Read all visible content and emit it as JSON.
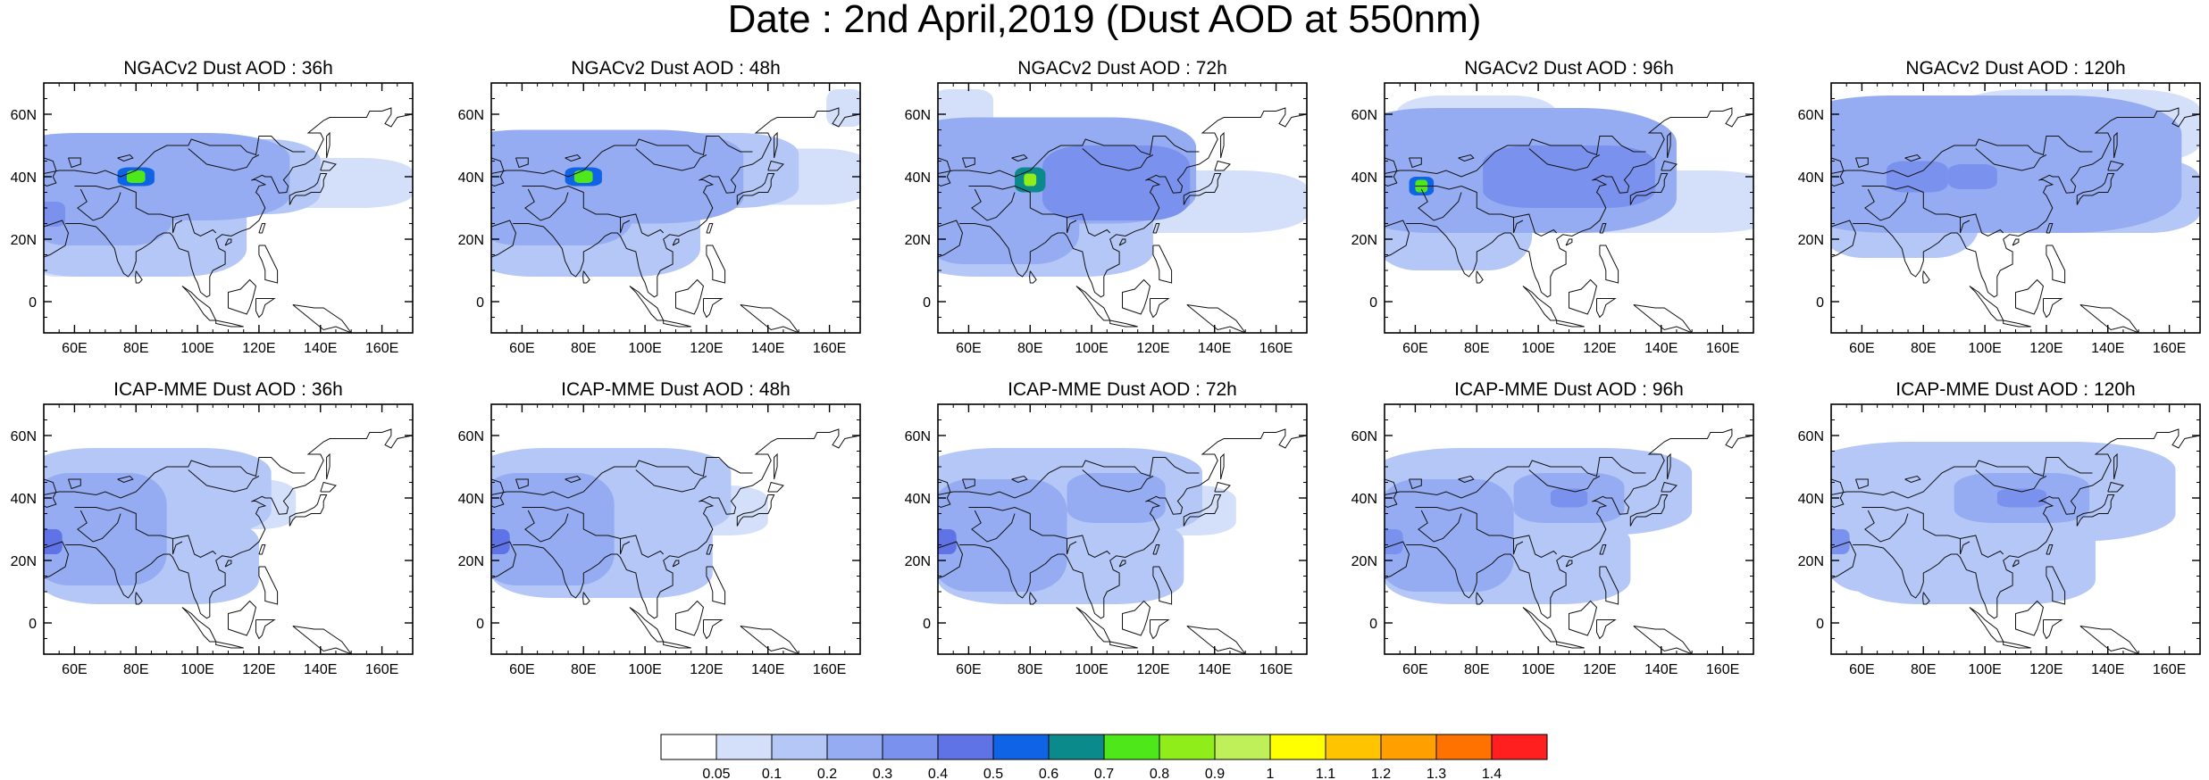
{
  "figure": {
    "title": "Date : 2nd April,2019 (Dust AOD at 550nm)"
  },
  "map_axes": {
    "lon_range": [
      50,
      170
    ],
    "lat_range": [
      -10,
      70
    ],
    "lon_ticks": [
      {
        "value": 60,
        "label": "60E"
      },
      {
        "value": 80,
        "label": "80E"
      },
      {
        "value": 100,
        "label": "100E"
      },
      {
        "value": 120,
        "label": "120E"
      },
      {
        "value": 140,
        "label": "140E"
      },
      {
        "value": 160,
        "label": "160E"
      }
    ],
    "lat_ticks": [
      {
        "value": 60,
        "label": "60N"
      },
      {
        "value": 40,
        "label": "40N"
      },
      {
        "value": 20,
        "label": "20N"
      },
      {
        "value": 0,
        "label": "0"
      }
    ]
  },
  "colorbar": {
    "colors": [
      "#ffffff",
      "#d4dffa",
      "#b4c7f6",
      "#95acf2",
      "#7a92ee",
      "#5f72e6",
      "#0f64e6",
      "#0a8a8a",
      "#4ee81a",
      "#8fee1a",
      "#bff05a",
      "#ffff00",
      "#ffc400",
      "#ffa000",
      "#ff7200",
      "#ff1f1f"
    ],
    "labels": [
      "0.05",
      "0.1",
      "0.2",
      "0.3",
      "0.4",
      "0.5",
      "0.6",
      "0.7",
      "0.8",
      "0.9",
      "1",
      "1.1",
      "1.2",
      "1.3",
      "1.4"
    ]
  },
  "panels": [
    {
      "title": "NGACv2 Dust AOD : 36h",
      "model": "NGACv2",
      "lead": "36h",
      "fields": [
        {
          "lon": 82,
          "lat": 40,
          "rlon": 48,
          "rlat": 14,
          "level": 3
        },
        {
          "lon": 68,
          "lat": 34,
          "rlon": 24,
          "rlat": 16,
          "level": 3
        },
        {
          "lon": 78,
          "lat": 24,
          "rlon": 38,
          "rlat": 16,
          "level": 2
        },
        {
          "lon": 110,
          "lat": 40,
          "rlon": 30,
          "rlat": 12,
          "level": 2
        },
        {
          "lon": 140,
          "lat": 38,
          "rlon": 30,
          "rlat": 8,
          "level": 1
        },
        {
          "lon": 58,
          "lat": 14,
          "rlon": 10,
          "rlat": 6,
          "level": 1
        },
        {
          "lon": 80,
          "lat": 40,
          "rlon": 6,
          "rlat": 3,
          "level": 6
        },
        {
          "lon": 80,
          "lat": 40,
          "rlon": 3,
          "rlat": 2,
          "level": 8
        },
        {
          "lon": 52,
          "lat": 28,
          "rlon": 5,
          "rlat": 4,
          "level": 4
        }
      ]
    },
    {
      "title": "NGACv2 Dust AOD : 48h",
      "model": "NGACv2",
      "lead": "48h",
      "fields": [
        {
          "lon": 82,
          "lat": 40,
          "rlon": 50,
          "rlat": 15,
          "level": 3
        },
        {
          "lon": 70,
          "lat": 34,
          "rlon": 26,
          "rlat": 16,
          "level": 3
        },
        {
          "lon": 80,
          "lat": 24,
          "rlon": 38,
          "rlat": 16,
          "level": 2
        },
        {
          "lon": 115,
          "lat": 42,
          "rlon": 35,
          "rlat": 12,
          "level": 2
        },
        {
          "lon": 145,
          "lat": 40,
          "rlon": 28,
          "rlat": 9,
          "level": 1
        },
        {
          "lon": 165,
          "lat": 62,
          "rlon": 6,
          "rlat": 6,
          "level": 1
        },
        {
          "lon": 80,
          "lat": 40,
          "rlon": 6,
          "rlat": 3,
          "level": 6
        },
        {
          "lon": 80,
          "lat": 40,
          "rlon": 3,
          "rlat": 2,
          "level": 8
        }
      ]
    },
    {
      "title": "NGACv2 Dust AOD : 72h",
      "model": "NGACv2",
      "lead": "72h",
      "fields": [
        {
          "lon": 84,
          "lat": 42,
          "rlon": 50,
          "rlat": 17,
          "level": 3
        },
        {
          "lon": 70,
          "lat": 30,
          "rlon": 26,
          "rlat": 18,
          "level": 3
        },
        {
          "lon": 80,
          "lat": 22,
          "rlon": 40,
          "rlat": 14,
          "level": 2
        },
        {
          "lon": 108,
          "lat": 38,
          "rlon": 24,
          "rlat": 12,
          "level": 4
        },
        {
          "lon": 130,
          "lat": 32,
          "rlon": 40,
          "rlat": 10,
          "level": 1
        },
        {
          "lon": 58,
          "lat": 62,
          "rlon": 10,
          "rlat": 6,
          "level": 1
        },
        {
          "lon": 80,
          "lat": 39,
          "rlon": 5,
          "rlat": 4,
          "level": 7
        },
        {
          "lon": 80,
          "lat": 39,
          "rlon": 2,
          "rlat": 2,
          "level": 9
        }
      ]
    },
    {
      "title": "NGACv2 Dust AOD : 96h",
      "model": "NGACv2",
      "lead": "96h",
      "fields": [
        {
          "lon": 90,
          "lat": 42,
          "rlon": 55,
          "rlat": 20,
          "level": 3
        },
        {
          "lon": 72,
          "lat": 30,
          "rlon": 26,
          "rlat": 20,
          "level": 2
        },
        {
          "lon": 80,
          "lat": 56,
          "rlon": 26,
          "rlat": 10,
          "level": 1
        },
        {
          "lon": 110,
          "lat": 40,
          "rlon": 28,
          "rlat": 10,
          "level": 4
        },
        {
          "lon": 138,
          "lat": 32,
          "rlon": 40,
          "rlat": 10,
          "level": 1
        },
        {
          "lon": 62,
          "lat": 37,
          "rlon": 4,
          "rlat": 3,
          "level": 6
        },
        {
          "lon": 62,
          "lat": 37,
          "rlon": 2,
          "rlat": 2,
          "level": 8
        }
      ]
    },
    {
      "title": "NGACv2 Dust AOD : 120h",
      "model": "NGACv2",
      "lead": "120h",
      "fields": [
        {
          "lon": 98,
          "lat": 44,
          "rlon": 66,
          "rlat": 22,
          "level": 3
        },
        {
          "lon": 72,
          "lat": 32,
          "rlon": 26,
          "rlat": 18,
          "level": 2
        },
        {
          "lon": 130,
          "lat": 56,
          "rlon": 40,
          "rlat": 12,
          "level": 1
        },
        {
          "lon": 140,
          "lat": 34,
          "rlon": 30,
          "rlat": 12,
          "level": 2
        },
        {
          "lon": 78,
          "lat": 40,
          "rlon": 10,
          "rlat": 5,
          "level": 4
        },
        {
          "lon": 96,
          "lat": 40,
          "rlon": 8,
          "rlat": 4,
          "level": 4
        }
      ]
    },
    {
      "title": "ICAP-MME Dust AOD : 36h",
      "model": "ICAP-MME",
      "lead": "36h",
      "fields": [
        {
          "lon": 84,
          "lat": 42,
          "rlon": 40,
          "rlat": 14,
          "level": 2
        },
        {
          "lon": 68,
          "lat": 30,
          "rlon": 22,
          "rlat": 18,
          "level": 3
        },
        {
          "lon": 84,
          "lat": 20,
          "rlon": 36,
          "rlat": 14,
          "level": 2
        },
        {
          "lon": 112,
          "lat": 38,
          "rlon": 20,
          "rlat": 8,
          "level": 1
        },
        {
          "lon": 52,
          "lat": 26,
          "rlon": 4,
          "rlat": 4,
          "level": 5
        }
      ]
    },
    {
      "title": "ICAP-MME Dust AOD : 48h",
      "model": "ICAP-MME",
      "lead": "48h",
      "fields": [
        {
          "lon": 86,
          "lat": 42,
          "rlon": 42,
          "rlat": 14,
          "level": 2
        },
        {
          "lon": 68,
          "lat": 30,
          "rlon": 22,
          "rlat": 18,
          "level": 3
        },
        {
          "lon": 86,
          "lat": 22,
          "rlon": 36,
          "rlat": 14,
          "level": 2
        },
        {
          "lon": 118,
          "lat": 36,
          "rlon": 22,
          "rlat": 8,
          "level": 1
        },
        {
          "lon": 52,
          "lat": 26,
          "rlon": 4,
          "rlat": 4,
          "level": 5
        }
      ]
    },
    {
      "title": "ICAP-MME Dust AOD : 72h",
      "model": "ICAP-MME",
      "lead": "72h",
      "fields": [
        {
          "lon": 90,
          "lat": 42,
          "rlon": 46,
          "rlat": 14,
          "level": 2
        },
        {
          "lon": 70,
          "lat": 28,
          "rlon": 22,
          "rlat": 18,
          "level": 3
        },
        {
          "lon": 90,
          "lat": 20,
          "rlon": 40,
          "rlat": 14,
          "level": 2
        },
        {
          "lon": 108,
          "lat": 40,
          "rlon": 16,
          "rlat": 8,
          "level": 3
        },
        {
          "lon": 125,
          "lat": 36,
          "rlon": 22,
          "rlat": 8,
          "level": 1
        },
        {
          "lon": 52,
          "lat": 26,
          "rlon": 4,
          "rlat": 4,
          "level": 5
        }
      ]
    },
    {
      "title": "ICAP-MME Dust AOD : 96h",
      "model": "ICAP-MME",
      "lead": "96h",
      "fields": [
        {
          "lon": 98,
          "lat": 42,
          "rlon": 52,
          "rlat": 14,
          "level": 2
        },
        {
          "lon": 70,
          "lat": 28,
          "rlon": 22,
          "rlat": 18,
          "level": 3
        },
        {
          "lon": 90,
          "lat": 20,
          "rlon": 40,
          "rlat": 14,
          "level": 2
        },
        {
          "lon": 110,
          "lat": 40,
          "rlon": 18,
          "rlat": 8,
          "level": 3
        },
        {
          "lon": 110,
          "lat": 40,
          "rlon": 6,
          "rlat": 3,
          "level": 4
        },
        {
          "lon": 52,
          "lat": 26,
          "rlon": 4,
          "rlat": 4,
          "level": 4
        }
      ]
    },
    {
      "title": "ICAP-MME Dust AOD : 120h",
      "model": "ICAP-MME",
      "lead": "120h",
      "fields": [
        {
          "lon": 102,
          "lat": 42,
          "rlon": 60,
          "rlat": 16,
          "level": 2
        },
        {
          "lon": 70,
          "lat": 28,
          "rlon": 22,
          "rlat": 18,
          "level": 2
        },
        {
          "lon": 96,
          "lat": 20,
          "rlon": 40,
          "rlat": 14,
          "level": 2
        },
        {
          "lon": 112,
          "lat": 40,
          "rlon": 22,
          "rlat": 8,
          "level": 3
        },
        {
          "lon": 112,
          "lat": 40,
          "rlon": 8,
          "rlat": 3,
          "level": 4
        },
        {
          "lon": 52,
          "lat": 26,
          "rlon": 4,
          "rlat": 4,
          "level": 4
        }
      ]
    }
  ]
}
